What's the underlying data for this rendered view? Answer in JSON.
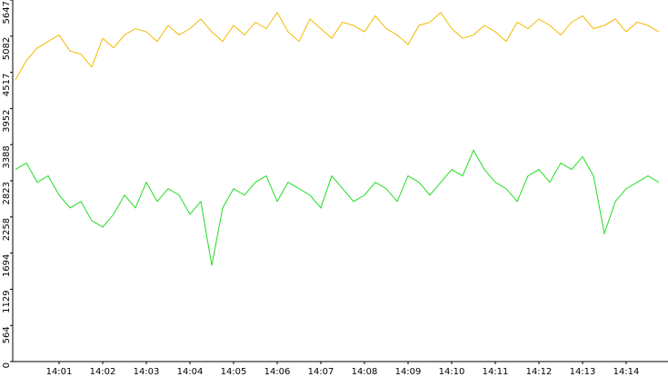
{
  "chart_data": {
    "type": "line",
    "categories": [
      null,
      null,
      null,
      null,
      "14:01",
      null,
      null,
      null,
      "14:02",
      null,
      null,
      null,
      "14:03",
      null,
      null,
      null,
      "14:04",
      null,
      null,
      null,
      "14:05",
      null,
      null,
      null,
      "14:06",
      null,
      null,
      null,
      "14:07",
      null,
      null,
      null,
      "14:08",
      null,
      null,
      null,
      "14:09",
      null,
      null,
      null,
      "14:10",
      null,
      null,
      null,
      "14:11",
      null,
      null,
      null,
      "14:12",
      null,
      null,
      null,
      "14:13",
      null,
      null,
      null,
      "14:14",
      null,
      null,
      null
    ],
    "series": [
      {
        "color": "#f5b800",
        "values": [
          4400,
          4700,
          4900,
          5000,
          5100,
          4850,
          4800,
          4600,
          5050,
          4900,
          5100,
          5200,
          5150,
          5000,
          5250,
          5100,
          5200,
          5350,
          5150,
          5000,
          5250,
          5100,
          5300,
          5200,
          5450,
          5150,
          5000,
          5350,
          5200,
          5050,
          5300,
          5250,
          5150,
          5400,
          5200,
          5100,
          4950,
          5250,
          5300,
          5450,
          5200,
          5050,
          5100,
          5250,
          5150,
          5000,
          5300,
          5200,
          5350,
          5250,
          5100,
          5300,
          5400,
          5200,
          5250,
          5350,
          5150,
          5300,
          5250,
          5150
        ]
      },
      {
        "color": "#22dd22",
        "values": [
          3000,
          3100,
          2800,
          2900,
          2600,
          2400,
          2500,
          2200,
          2100,
          2300,
          2600,
          2400,
          2800,
          2500,
          2700,
          2600,
          2300,
          2500,
          1500,
          2400,
          2700,
          2600,
          2800,
          2900,
          2500,
          2800,
          2700,
          2600,
          2400,
          2900,
          2700,
          2500,
          2600,
          2800,
          2700,
          2500,
          2900,
          2800,
          2600,
          2800,
          3000,
          2900,
          3300,
          3000,
          2800,
          2700,
          2500,
          2900,
          3000,
          2800,
          3100,
          3000,
          3200,
          2900,
          2000,
          2500,
          2700,
          2800,
          2900,
          2800
        ]
      }
    ],
    "ylim": [
      0,
      5647
    ],
    "yticks": [
      0,
      564,
      1129,
      1694,
      2258,
      2823,
      3388,
      3952,
      4517,
      5082,
      5647
    ]
  }
}
